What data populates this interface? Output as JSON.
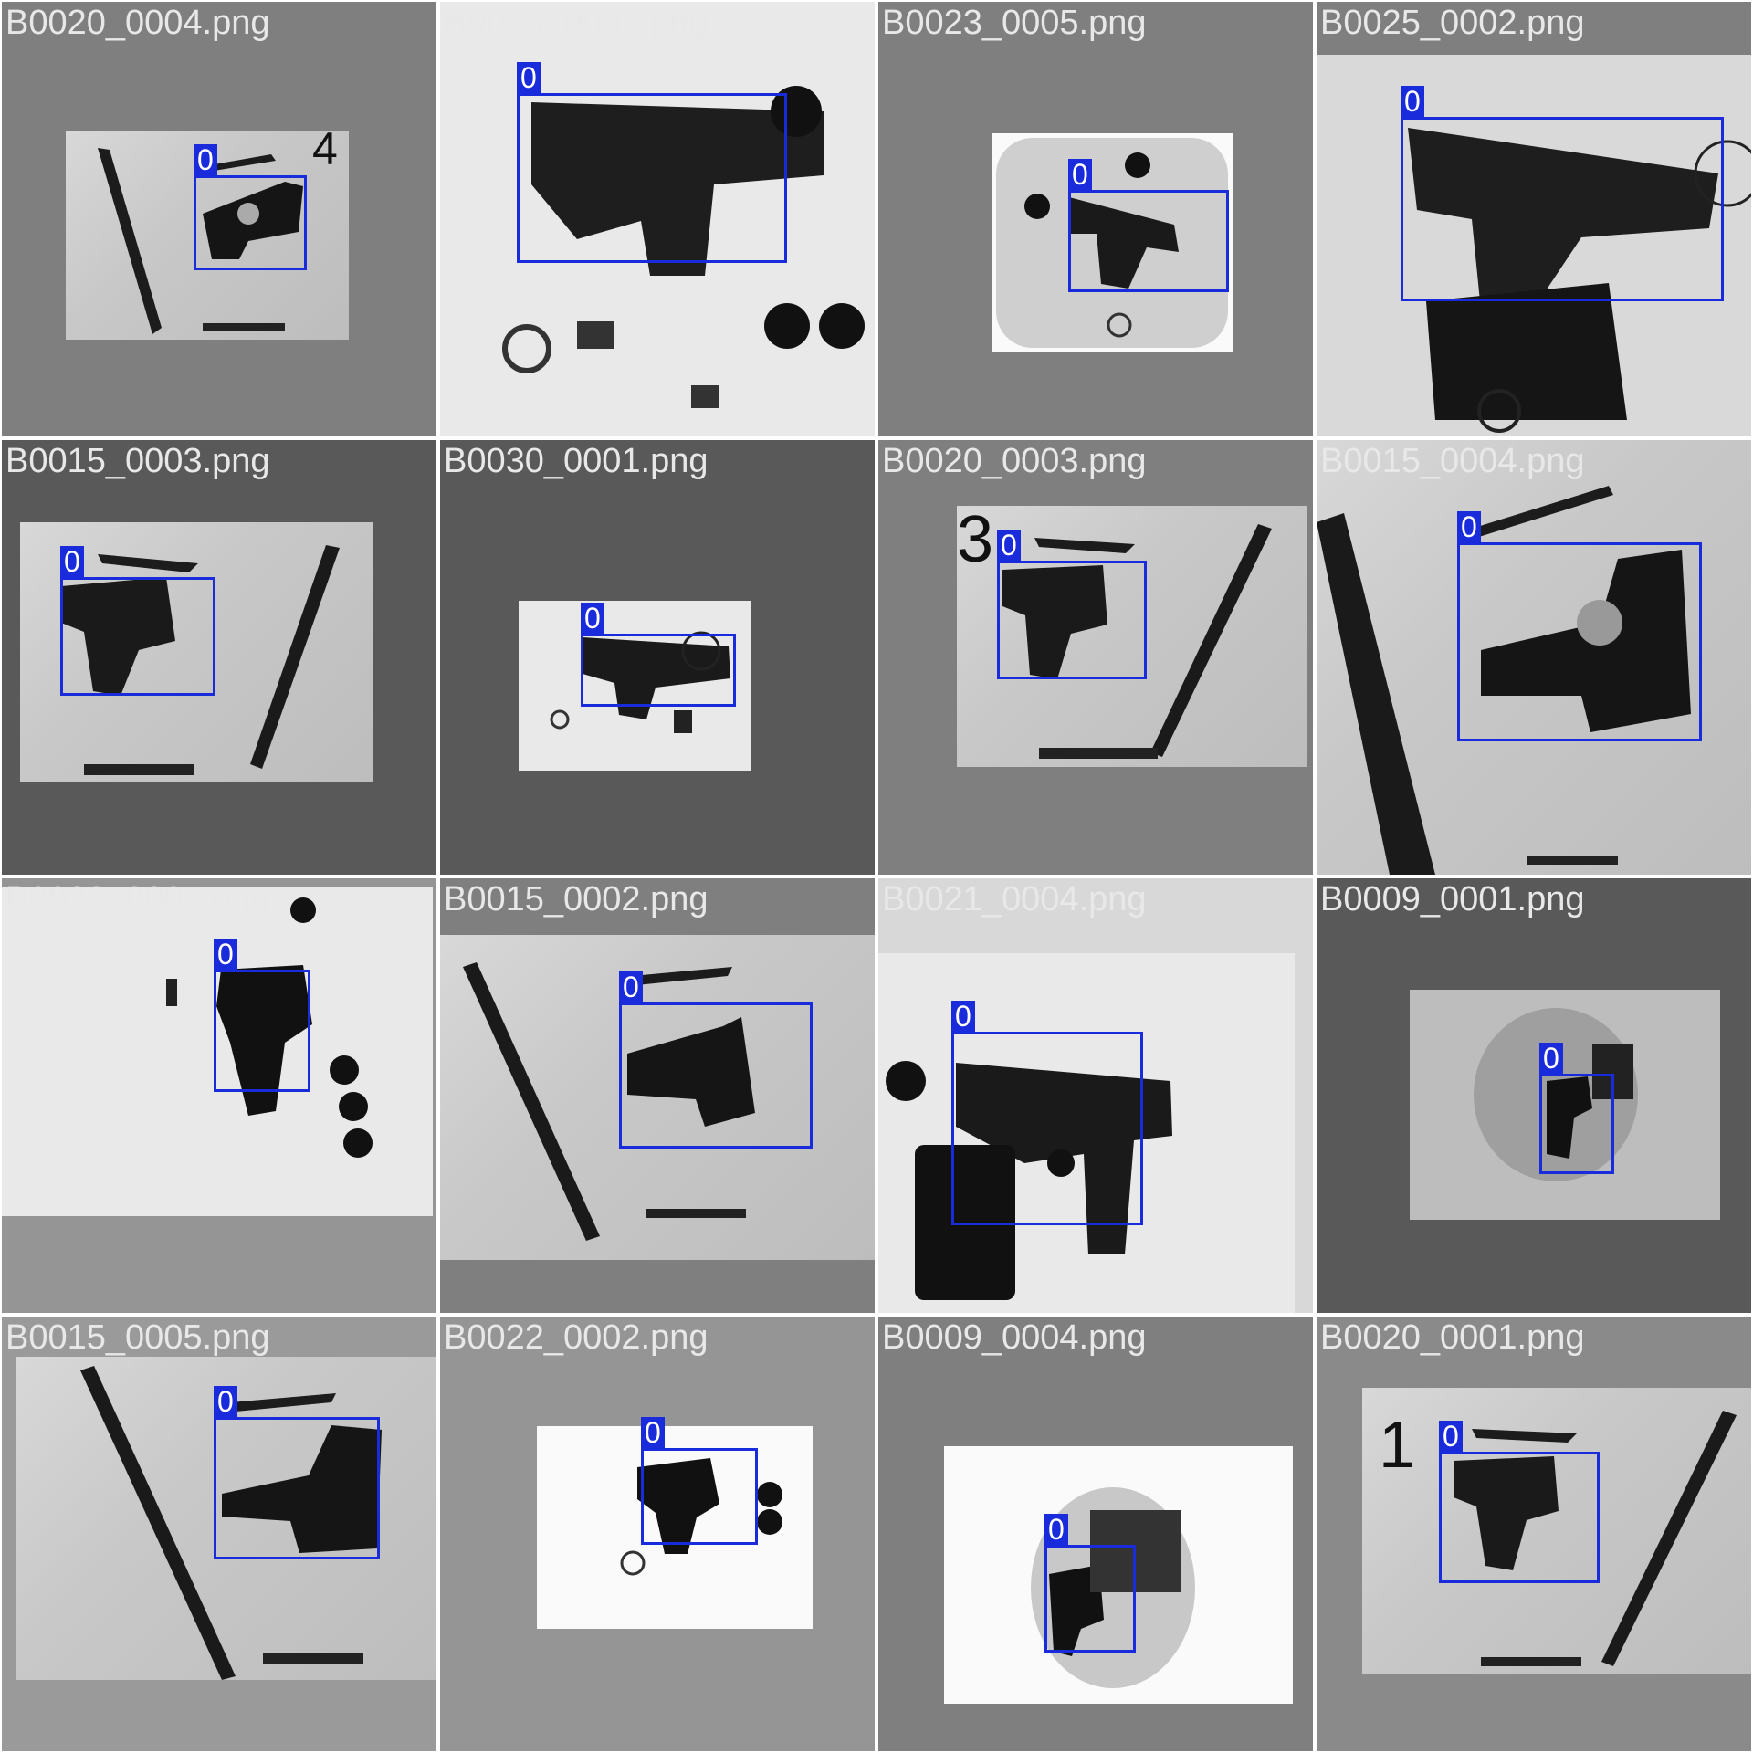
{
  "colors": {
    "bbox": "#1a2bdc",
    "label_text": "#ffffff",
    "filename_text": "#e8e8e8"
  },
  "tiles": [
    {
      "filename": "B0020_0004.png",
      "bbox_label": "0",
      "corner_number": "4"
    },
    {
      "filename": "B0023_0002.png",
      "bbox_label": "0"
    },
    {
      "filename": "B0023_0005.png",
      "bbox_label": "0"
    },
    {
      "filename": "B0025_0002.png",
      "bbox_label": "0"
    },
    {
      "filename": "B0015_0003.png",
      "bbox_label": "0"
    },
    {
      "filename": "B0030_0001.png",
      "bbox_label": "0"
    },
    {
      "filename": "B0020_0003.png",
      "bbox_label": "0",
      "corner_number": "3"
    },
    {
      "filename": "B0015_0004.png",
      "bbox_label": "0"
    },
    {
      "filename": "B0022_0005.png",
      "bbox_label": "0"
    },
    {
      "filename": "B0015_0002.png",
      "bbox_label": "0"
    },
    {
      "filename": "B0021_0004.png",
      "bbox_label": "0"
    },
    {
      "filename": "B0009_0001.png",
      "bbox_label": "0"
    },
    {
      "filename": "B0015_0005.png",
      "bbox_label": "0"
    },
    {
      "filename": "B0022_0002.png",
      "bbox_label": "0"
    },
    {
      "filename": "B0009_0004.png",
      "bbox_label": "0"
    },
    {
      "filename": "B0020_0001.png",
      "bbox_label": "0",
      "corner_number": "1"
    }
  ]
}
